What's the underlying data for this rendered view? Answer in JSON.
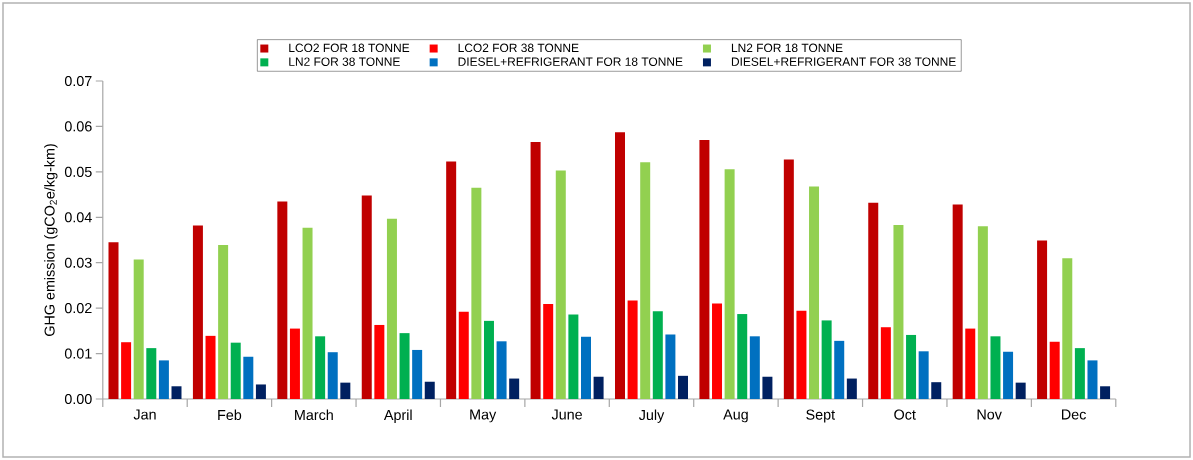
{
  "chart_data": {
    "type": "bar",
    "ylabel": "GHG emission (gCO$_{2}$e/kg-km)",
    "categories": [
      "Jan",
      "Feb",
      "March",
      "April",
      "May",
      "June",
      "July",
      "Aug",
      "Sept",
      "Oct",
      "Nov",
      "Dec"
    ],
    "series": [
      {
        "name": "LCO2 FOR 18 TONNE",
        "color": "#c00000",
        "values": [
          0.0345,
          0.0382,
          0.0435,
          0.0448,
          0.0523,
          0.0566,
          0.0587,
          0.057,
          0.0527,
          0.0432,
          0.0428,
          0.0349
        ]
      },
      {
        "name": "LCO2 FOR 38 TONNE",
        "color": "#ff0000",
        "values": [
          0.0125,
          0.0139,
          0.0155,
          0.0163,
          0.0192,
          0.0209,
          0.0217,
          0.021,
          0.0194,
          0.0158,
          0.0155,
          0.0126
        ]
      },
      {
        "name": "LN2 FOR 18 TONNE",
        "color": "#92d050",
        "values": [
          0.0307,
          0.0339,
          0.0377,
          0.0397,
          0.0465,
          0.0503,
          0.0521,
          0.0506,
          0.0468,
          0.0383,
          0.038,
          0.031
        ]
      },
      {
        "name": "LN2 FOR 38 TONNE",
        "color": "#00b050",
        "values": [
          0.0112,
          0.0124,
          0.0138,
          0.0145,
          0.0172,
          0.0186,
          0.0193,
          0.0187,
          0.0173,
          0.0141,
          0.0138,
          0.0112
        ]
      },
      {
        "name": "DIESEL+REFRIGERANT FOR 18 TONNE",
        "color": "#0070c0",
        "values": [
          0.0085,
          0.0093,
          0.0103,
          0.0108,
          0.0127,
          0.0137,
          0.0142,
          0.0138,
          0.0128,
          0.0105,
          0.0104,
          0.0085
        ]
      },
      {
        "name": "DIESEL+REFRIGERANT FOR 38 TONNE",
        "color": "#002060",
        "values": [
          0.0028,
          0.0032,
          0.0036,
          0.0038,
          0.0045,
          0.0049,
          0.0051,
          0.0049,
          0.0045,
          0.0037,
          0.0036,
          0.0028
        ]
      }
    ],
    "ylim": [
      0,
      0.07
    ],
    "yticks": [
      {
        "value": 0,
        "label": "0.00"
      },
      {
        "value": 0.01,
        "label": "0.01"
      },
      {
        "value": 0.02,
        "label": "0.02"
      },
      {
        "value": 0.03,
        "label": "0.03"
      },
      {
        "value": 0.04,
        "label": "0.04"
      },
      {
        "value": 0.05,
        "label": "0.05"
      },
      {
        "value": 0.06,
        "label": "0.06"
      },
      {
        "value": 0.07,
        "label": "0.07"
      }
    ],
    "grid": false,
    "legend": "top"
  }
}
